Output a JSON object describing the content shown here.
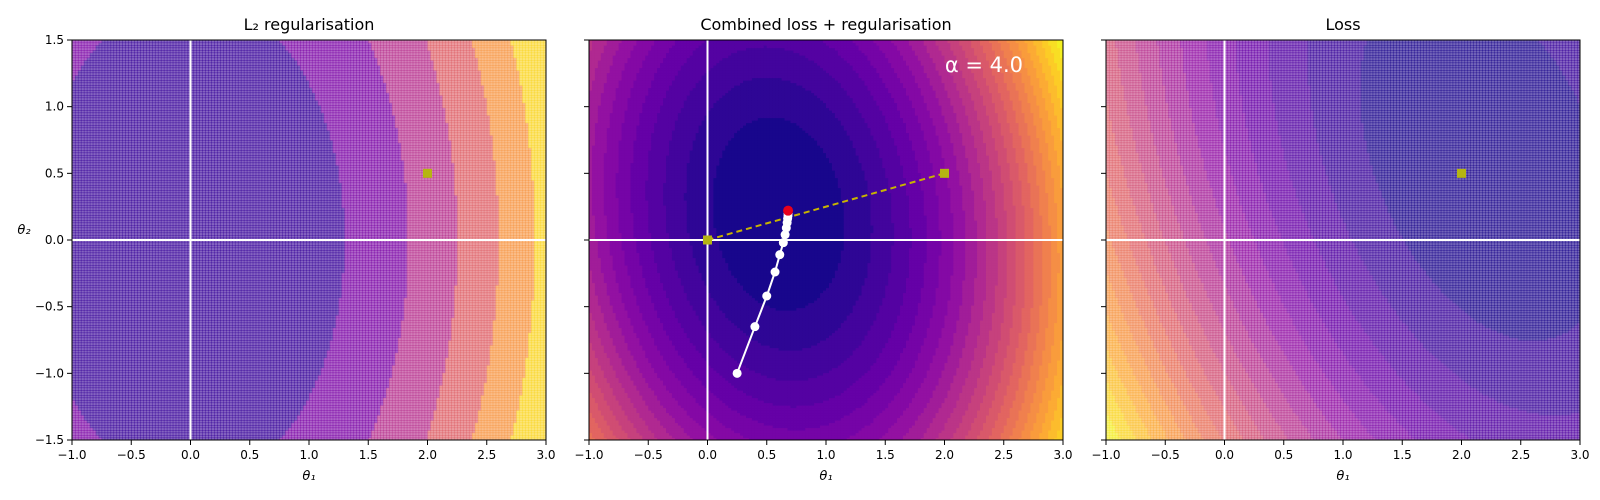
{
  "chart_data": [
    {
      "type": "contour",
      "title": "L₂ regularisation",
      "xlabel": "θ₁",
      "ylabel": "θ₂",
      "xlim": [
        -1.0,
        3.0
      ],
      "ylim": [
        -1.5,
        1.5
      ],
      "xticks": [
        "−1.0",
        "−0.5",
        "0.0",
        "0.5",
        "1.0",
        "1.5",
        "2.0",
        "2.5",
        "3.0"
      ],
      "yticks": [
        "−1.5",
        "−1.0",
        "−0.5",
        "0.0",
        "0.5",
        "1.0",
        "1.5"
      ],
      "show_ytick_labels": true,
      "surface": "l2",
      "unregularised_optimum": {
        "x": 2.0,
        "y": 0.5,
        "color": "#b5b512"
      },
      "annotation": "",
      "path": []
    },
    {
      "type": "contour",
      "title": "Combined loss + regularisation",
      "xlabel": "θ₁",
      "ylabel": "",
      "xlim": [
        -1.0,
        3.0
      ],
      "ylim": [
        -1.5,
        1.5
      ],
      "xticks": [
        "−1.0",
        "−0.5",
        "0.0",
        "0.5",
        "1.0",
        "1.5",
        "2.0",
        "2.5",
        "3.0"
      ],
      "yticks": [
        "−1.5",
        "−1.0",
        "−0.5",
        "0.0",
        "0.5",
        "1.0",
        "1.5"
      ],
      "show_ytick_labels": false,
      "surface": "combined",
      "unregularised_optimum": {
        "x": 2.0,
        "y": 0.5,
        "color": "#b5b512"
      },
      "origin_marker": {
        "x": 0.0,
        "y": 0.0,
        "color": "#b5b512"
      },
      "regularised_optimum": {
        "x": 0.68,
        "y": 0.22,
        "color": "#e8001c"
      },
      "annotation": "α = 4.0",
      "path": [
        {
          "x": 0.25,
          "y": -1.0
        },
        {
          "x": 0.4,
          "y": -0.65
        },
        {
          "x": 0.5,
          "y": -0.42
        },
        {
          "x": 0.57,
          "y": -0.24
        },
        {
          "x": 0.61,
          "y": -0.11
        },
        {
          "x": 0.64,
          "y": -0.02
        },
        {
          "x": 0.655,
          "y": 0.04
        },
        {
          "x": 0.665,
          "y": 0.09
        },
        {
          "x": 0.672,
          "y": 0.13
        },
        {
          "x": 0.676,
          "y": 0.16
        },
        {
          "x": 0.679,
          "y": 0.18
        },
        {
          "x": 0.68,
          "y": 0.2
        }
      ]
    },
    {
      "type": "contour",
      "title": "Loss",
      "xlabel": "θ₁",
      "ylabel": "",
      "xlim": [
        -1.0,
        3.0
      ],
      "ylim": [
        -1.5,
        1.5
      ],
      "xticks": [
        "−1.0",
        "−0.5",
        "0.0",
        "0.5",
        "1.0",
        "1.5",
        "2.0",
        "2.5",
        "3.0"
      ],
      "yticks": [
        "−1.5",
        "−1.0",
        "−0.5",
        "0.0",
        "0.5",
        "1.0",
        "1.5"
      ],
      "show_ytick_labels": false,
      "surface": "loss",
      "unregularised_optimum": {
        "x": 2.0,
        "y": 0.5,
        "color": "#b5b512"
      },
      "annotation": "",
      "path": []
    }
  ],
  "colors": {
    "colormap": "plasma",
    "axis_lines": "#ffffff",
    "path": "#ffffff",
    "optimum_line": "#c8b400"
  }
}
